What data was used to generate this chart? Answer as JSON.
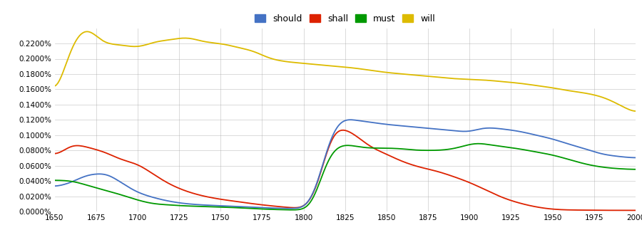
{
  "legend_labels": [
    "should",
    "shall",
    "must",
    "will"
  ],
  "legend_colors": [
    "#4472c4",
    "#dd2200",
    "#009900",
    "#ddbb00"
  ],
  "xmin": 1650,
  "xmax": 2000,
  "ymin": 0.0,
  "ymax": 0.0024,
  "yticks": [
    0.0,
    0.0002,
    0.0004,
    0.0006,
    0.0008,
    0.001,
    0.0012,
    0.0014,
    0.0016,
    0.0018,
    0.002,
    0.0022
  ],
  "ytick_labels": [
    "0.0000%",
    "0.0200%",
    "0.0400%",
    "0.0600%",
    "0.0800%",
    "0.1000%",
    "0.1200%",
    "0.1400%",
    "0.1600%",
    "0.1800%",
    "0.2000%",
    "0.2200%"
  ],
  "xticks": [
    1650,
    1675,
    1700,
    1725,
    1750,
    1775,
    1800,
    1825,
    1850,
    1875,
    1900,
    1925,
    1950,
    1975,
    2000
  ],
  "bg_color": "#ffffff",
  "grid_color": "#aaaaaa",
  "line_width": 1.3
}
